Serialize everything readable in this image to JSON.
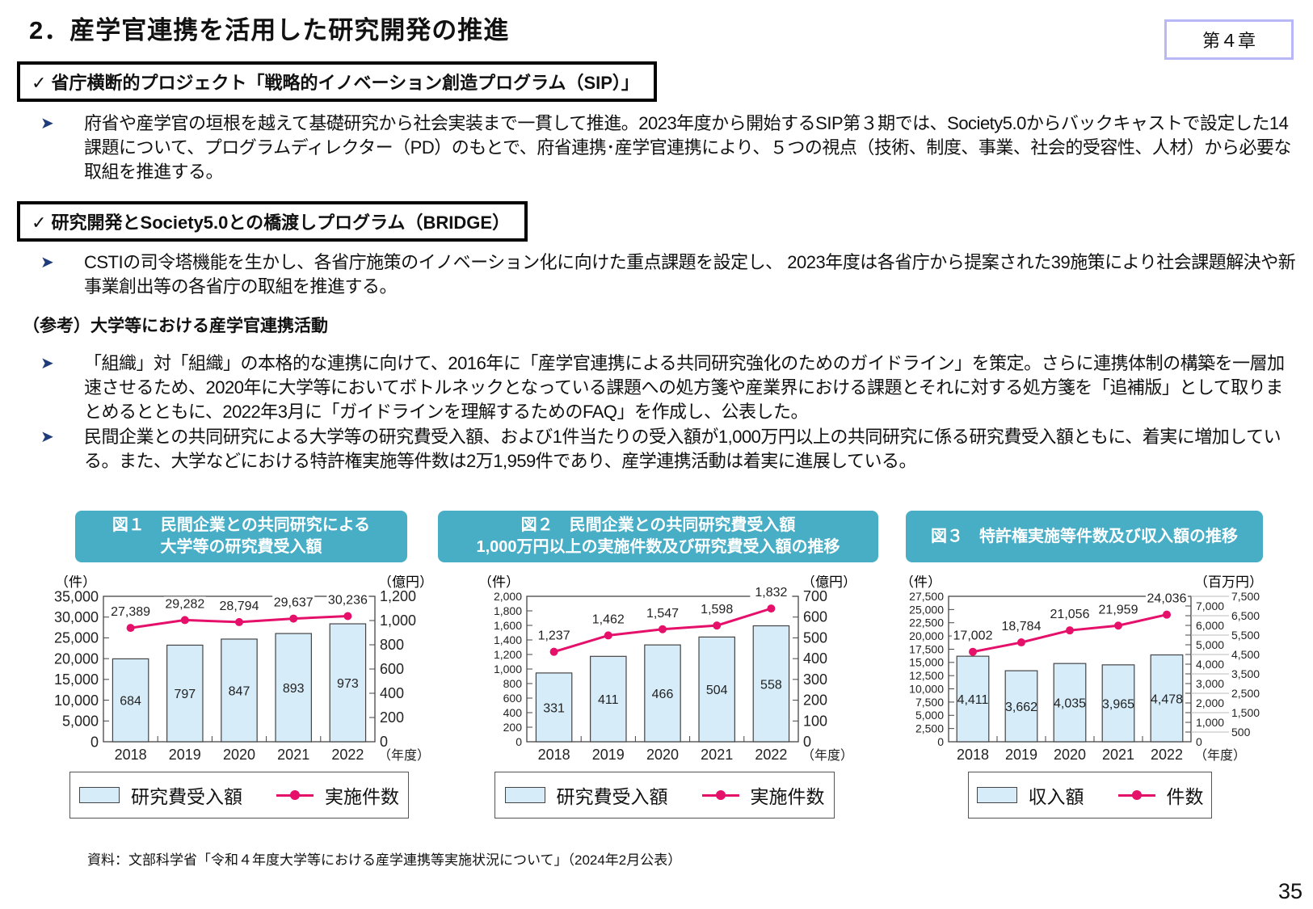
{
  "header": {
    "title": "2．産学官連携を活用した研究開発の推進",
    "chapter": "第４章"
  },
  "sections": [
    {
      "heading": "✓ 省庁横断的プロジェクト「戦略的イノベーション創造プログラム（SIP）」",
      "bullets": [
        "府省や産学官の垣根を越えて基礎研究から社会実装まで一貫して推進。2023年度から開始するSIP第３期では、Society5.0からバックキャストで設定した14課題について、プログラムディレクター（PD）のもとで、府省連携･産学官連携により、５つの視点（技術、制度、事業、社会的受容性、人材）から必要な取組を推進する。"
      ]
    },
    {
      "heading": "✓ 研究開発とSociety5.0との橋渡しプログラム（BRIDGE）",
      "bullets": [
        "CSTIの司令塔機能を生かし、各省庁施策のイノベーション化に向けた重点課題を設定し、 2023年度は各省庁から提案された39施策により社会課題解決や新事業創出等の各省庁の取組を推進する。"
      ]
    },
    {
      "heading": "（参考）大学等における産学官連携活動",
      "bullets": [
        "「組織」対「組織」の本格的な連携に向けて、2016年に「産学官連携による共同研究強化のためのガイドライン」を策定。さらに連携体制の構築を一層加速させるため、2020年に大学等においてボトルネックとなっている課題への処方箋や産業界における課題とそれに対する処方箋を「追補版」として取りまとめるとともに、2022年3月に「ガイドラインを理解するためのFAQ」を作成し、公表した。",
        "民間企業との共同研究による大学等の研究費受入額、および1件当たりの受入額が1,000万円以上の共同研究に係る研究費受入額ともに、着実に増加している。また、大学などにおける特許権実施等件数は2万1,959件であり、産学連携活動は着実に進展している。"
      ]
    }
  ],
  "bullet_icon": "arrowhead-bullet-icon",
  "figures": [
    {
      "title_lines": [
        "図１　民間企業との共同研究による",
        "大学等の研究費受入額"
      ]
    },
    {
      "title_lines": [
        "図２　民間企業との共同研究費受入額",
        "1,000万円以上の実施件数及び研究費受入額の推移"
      ]
    },
    {
      "title_lines": [
        "図３　特許権実施等件数及び収入額の推移"
      ]
    }
  ],
  "colors": {
    "bar_fill": "#d6ecf9",
    "line": "#e5106a",
    "title_bg": "#48aec6"
  },
  "chart_data": [
    {
      "type": "bar+line",
      "categories": [
        "2018",
        "2019",
        "2020",
        "2021",
        "2022"
      ],
      "xunit": "（年度）",
      "left_unit": "（件）",
      "right_unit": "（億円）",
      "bars": {
        "name": "研究費受入額",
        "axis": "right",
        "values": [
          684,
          797,
          847,
          893,
          973
        ],
        "labels": [
          "684",
          "797",
          "847",
          "893",
          "973"
        ]
      },
      "line": {
        "name": "実施件数",
        "axis": "left",
        "values": [
          27389,
          29282,
          28794,
          29637,
          30236
        ],
        "labels": [
          "27,389",
          "29,282",
          "28,794",
          "29,637",
          "30,236"
        ]
      },
      "left_axis": {
        "range": [
          0,
          35000
        ],
        "ticks": [
          "0",
          "5,000",
          "10,000",
          "15,000",
          "20,000",
          "25,000",
          "30,000",
          "35,000"
        ]
      },
      "right_axis": {
        "range": [
          0,
          1200
        ],
        "ticks": [
          "0",
          "200",
          "400",
          "600",
          "800",
          "1,000",
          "1,200"
        ]
      }
    },
    {
      "type": "bar+line",
      "categories": [
        "2018",
        "2019",
        "2020",
        "2021",
        "2022"
      ],
      "xunit": "（年度）",
      "left_unit": "（件）",
      "right_unit": "（億円）",
      "bars": {
        "name": "研究費受入額",
        "axis": "right",
        "values": [
          331,
          411,
          466,
          504,
          558
        ],
        "labels": [
          "331",
          "411",
          "466",
          "504",
          "558"
        ]
      },
      "line": {
        "name": "実施件数",
        "axis": "left",
        "values": [
          1237,
          1462,
          1547,
          1598,
          1832
        ],
        "labels": [
          "1,237",
          "1,462",
          "1,547",
          "1,598",
          "1,832"
        ]
      },
      "left_axis": {
        "range": [
          0,
          2000
        ],
        "ticks": [
          "0",
          "200",
          "400",
          "600",
          "800",
          "1,000",
          "1,200",
          "1,400",
          "1,600",
          "1,800",
          "2,000"
        ]
      },
      "right_axis": {
        "range": [
          0,
          700
        ],
        "ticks": [
          "0",
          "100",
          "200",
          "300",
          "400",
          "500",
          "600",
          "700"
        ]
      }
    },
    {
      "type": "bar+line",
      "categories": [
        "2018",
        "2019",
        "2020",
        "2021",
        "2022"
      ],
      "xunit": "（年度）",
      "left_unit": "（件）",
      "right_unit": "（百万円）",
      "bars": {
        "name": "収入額",
        "axis": "right",
        "values": [
          4411,
          3662,
          4035,
          3965,
          4478
        ],
        "labels": [
          "4,411",
          "3,662",
          "4,035",
          "3,965",
          "4,478"
        ]
      },
      "line": {
        "name": "件数",
        "axis": "left",
        "values": [
          17002,
          18784,
          21056,
          21959,
          24036
        ],
        "labels": [
          "17,002",
          "18,784",
          "21,056",
          "21,959",
          "24,036"
        ]
      },
      "left_axis": {
        "range": [
          0,
          27500
        ],
        "ticks": [
          "0",
          "2,500",
          "5,000",
          "7,500",
          "10,000",
          "12,500",
          "15,000",
          "17,500",
          "20,000",
          "22,500",
          "25,000",
          "27,500"
        ]
      },
      "right_axis": {
        "range": [
          0,
          7500
        ],
        "ticks": [
          "0",
          "500",
          "1,000",
          "1,500",
          "2,000",
          "2,500",
          "3,000",
          "3,500",
          "4,000",
          "4,500",
          "5,000",
          "5,500",
          "6,000",
          "6,500",
          "7,000",
          "7,500"
        ]
      }
    }
  ],
  "footer": {
    "source": "資料：文部科学省「令和４年度大学等における産学連携等実施状況について」（2024年2月公表）",
    "page": "35"
  }
}
